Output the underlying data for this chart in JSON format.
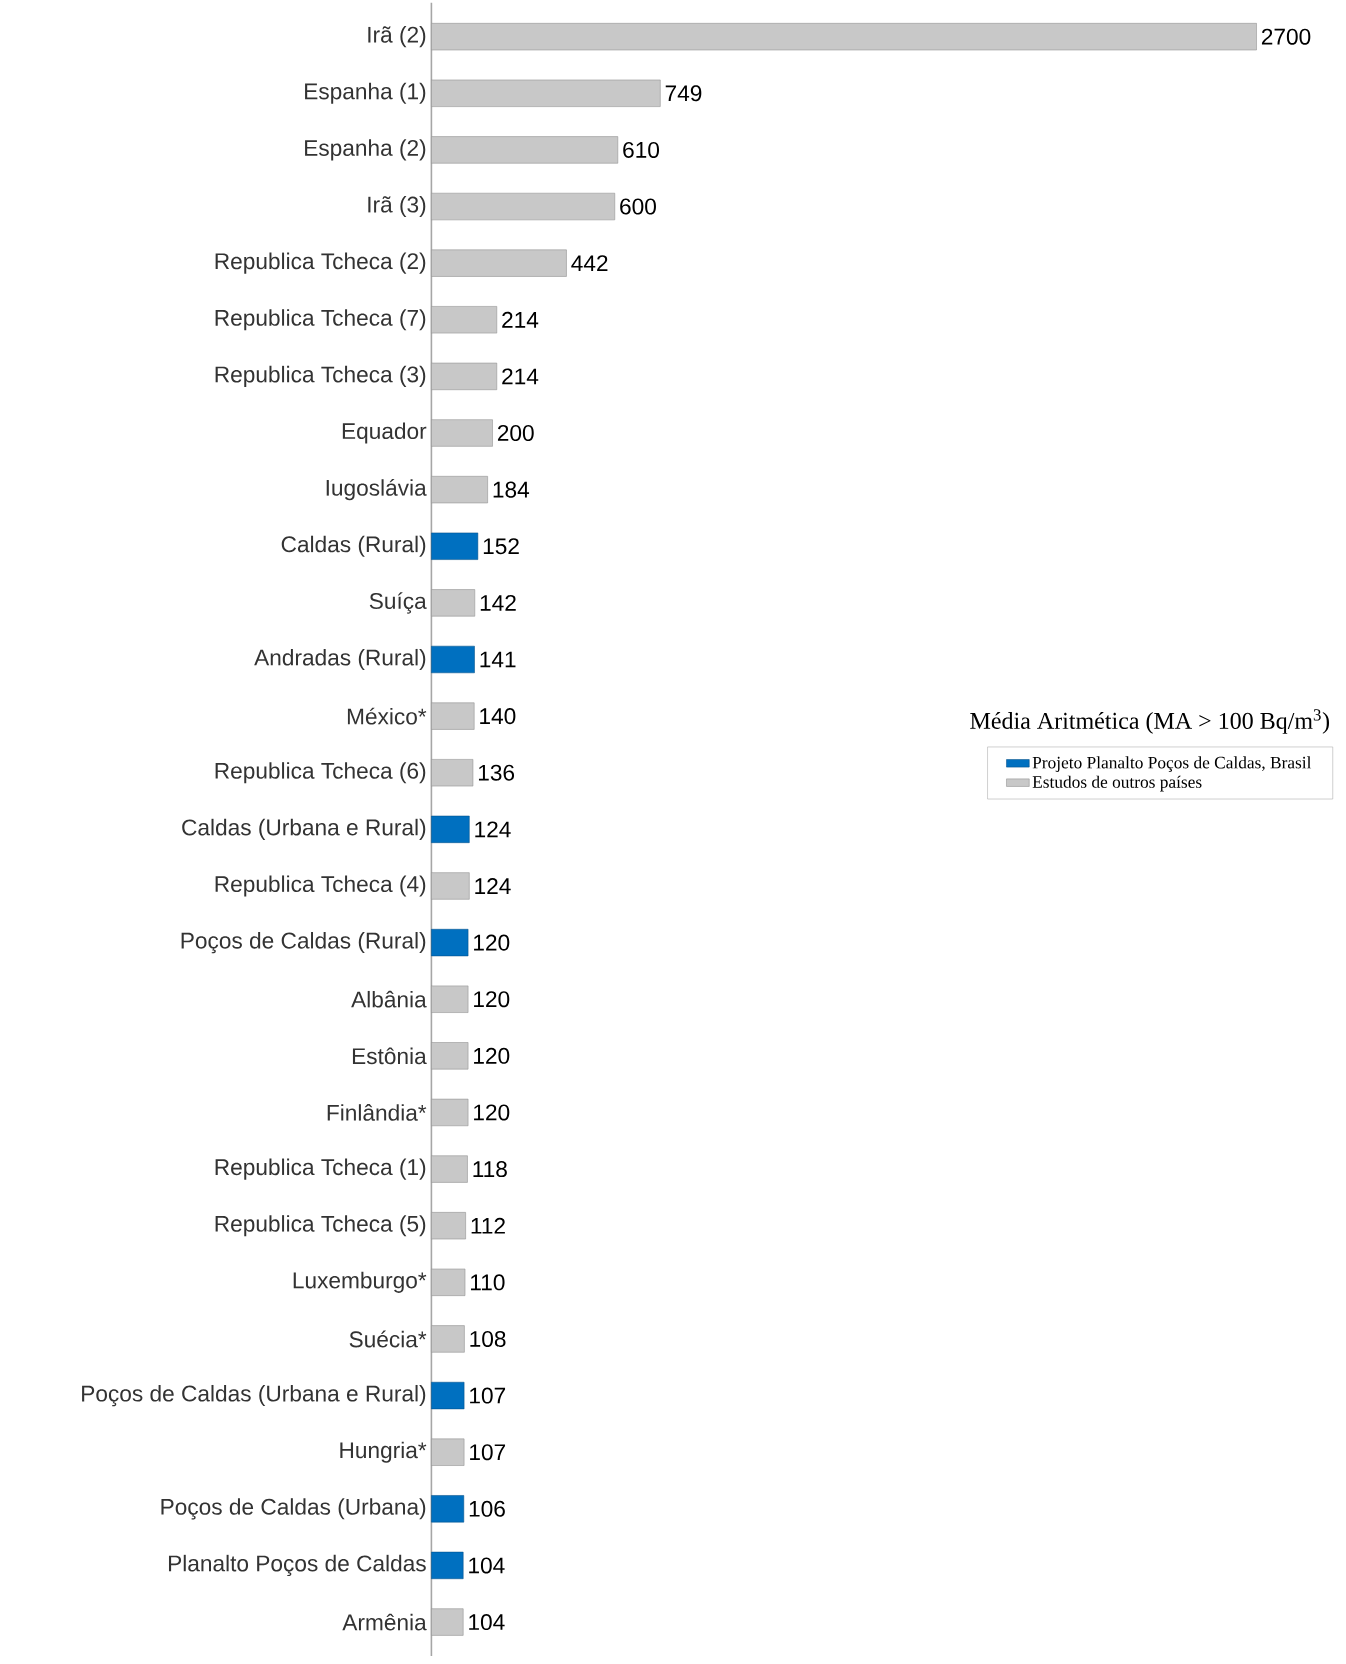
{
  "chart_data": {
    "type": "bar",
    "orientation": "horizontal",
    "legend_title": "Média Aritmética (MA > 100 Bq/m$^{3}$)",
    "legend": "right",
    "data_labels": true,
    "categories": [
      "Irã (2)",
      "Espanha (1)",
      "Espanha (2)",
      "Irã (3)",
      "Republica Tcheca (2)",
      "Republica Tcheca (7)",
      "Republica Tcheca (3)",
      "Equador",
      "Iugoslávia",
      "Caldas (Rural)",
      "Suíça",
      "Andradas (Rural)",
      "México*",
      "Republica Tcheca (6)",
      "Caldas (Urbana e Rural)",
      "Republica Tcheca (4)",
      "Poços de Caldas (Rural)",
      "Albânia",
      "Estônia",
      "Finlândia*",
      "Republica Tcheca (1)",
      "Republica Tcheca (5)",
      "Luxemburgo*",
      "Suécia*",
      "Poços de Caldas (Urbana e Rural)",
      "Hungria*",
      "Poços de Caldas (Urbana)",
      "Planalto Poços de Caldas",
      "Armênia"
    ],
    "series": [
      {
        "name": "Projeto Planalto Poços de Caldas, Brasil",
        "color": "#0070c0",
        "values": [
          null,
          null,
          null,
          null,
          null,
          null,
          null,
          null,
          null,
          152,
          null,
          141,
          null,
          null,
          124,
          null,
          120,
          null,
          null,
          null,
          null,
          null,
          null,
          null,
          107,
          null,
          106,
          104,
          null
        ]
      },
      {
        "name": "Estudos de outros países",
        "color": "#c8c8c8",
        "values": [
          2700,
          749,
          610,
          600,
          442,
          214,
          214,
          200,
          184,
          null,
          142,
          null,
          140,
          136,
          null,
          124,
          null,
          120,
          120,
          120,
          118,
          112,
          110,
          108,
          null,
          107,
          null,
          null,
          104
        ]
      }
    ]
  }
}
